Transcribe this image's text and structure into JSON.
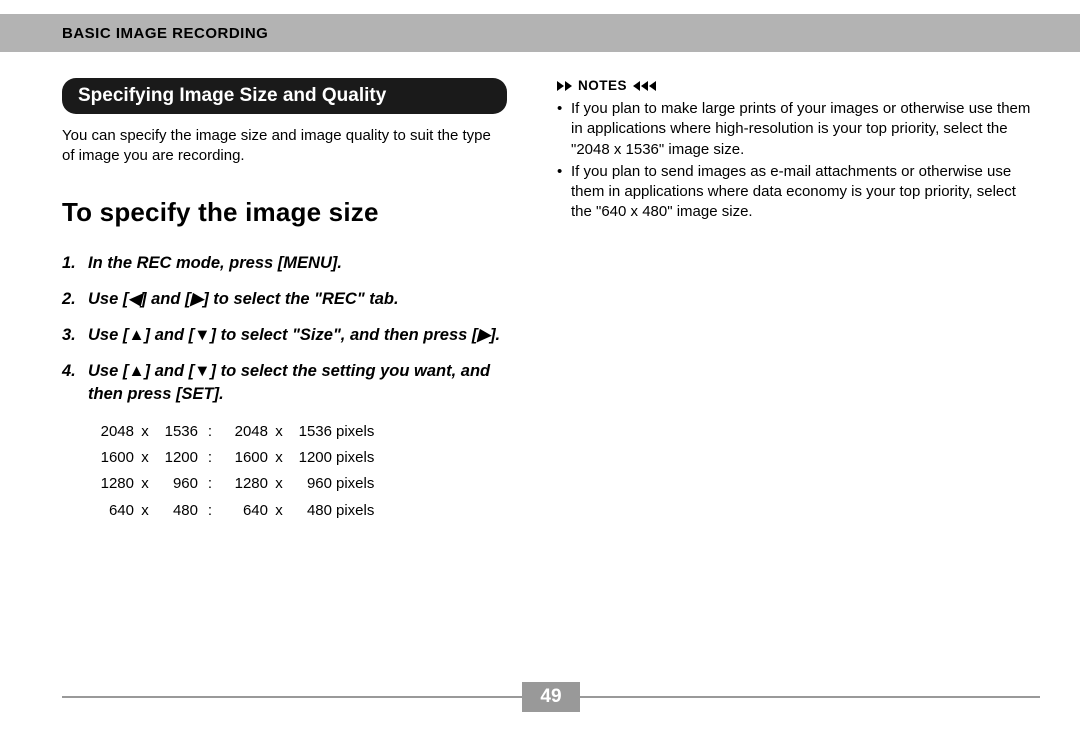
{
  "header": {
    "title": "BASIC IMAGE RECORDING"
  },
  "section_title": "Specifying Image Size and Quality",
  "intro": "You can specify the image size and image quality to suit the type of image you are recording.",
  "subheading": "To specify the image size",
  "steps": [
    {
      "n": "1.",
      "text": "In the REC mode, press [MENU]."
    },
    {
      "n": "2.",
      "text": "Use [◀] and [▶] to select the \"REC\" tab."
    },
    {
      "n": "3.",
      "text": "Use [▲] and [▼] to select \"Size\", and then press [▶]."
    },
    {
      "n": "4.",
      "text": "Use [▲] and [▼] to select the setting you want, and then press [SET]."
    }
  ],
  "size_table": {
    "unit": "pixels",
    "rows": [
      {
        "w": "2048",
        "h": "1536",
        "pw": "2048",
        "ph": "1536"
      },
      {
        "w": "1600",
        "h": "1200",
        "pw": "1600",
        "ph": "1200"
      },
      {
        "w": "1280",
        "h": "960",
        "pw": "1280",
        "ph": "960"
      },
      {
        "w": "640",
        "h": "480",
        "pw": "640",
        "ph": "480"
      }
    ]
  },
  "notes_label": "NOTES",
  "notes": [
    "If you plan to make large prints of your images or otherwise use them in applications where high-resolution is your top priority, select the \"2048 x 1536\" image size.",
    "If you plan to send images as e-mail attachments or otherwise use them in applications where data economy is your top priority, select the \"640 x 480\" image size."
  ],
  "page_number": "49",
  "colors": {
    "header_bg": "#b3b3b3",
    "pill_bg": "#1a1a1a",
    "footer_gray": "#999999"
  }
}
